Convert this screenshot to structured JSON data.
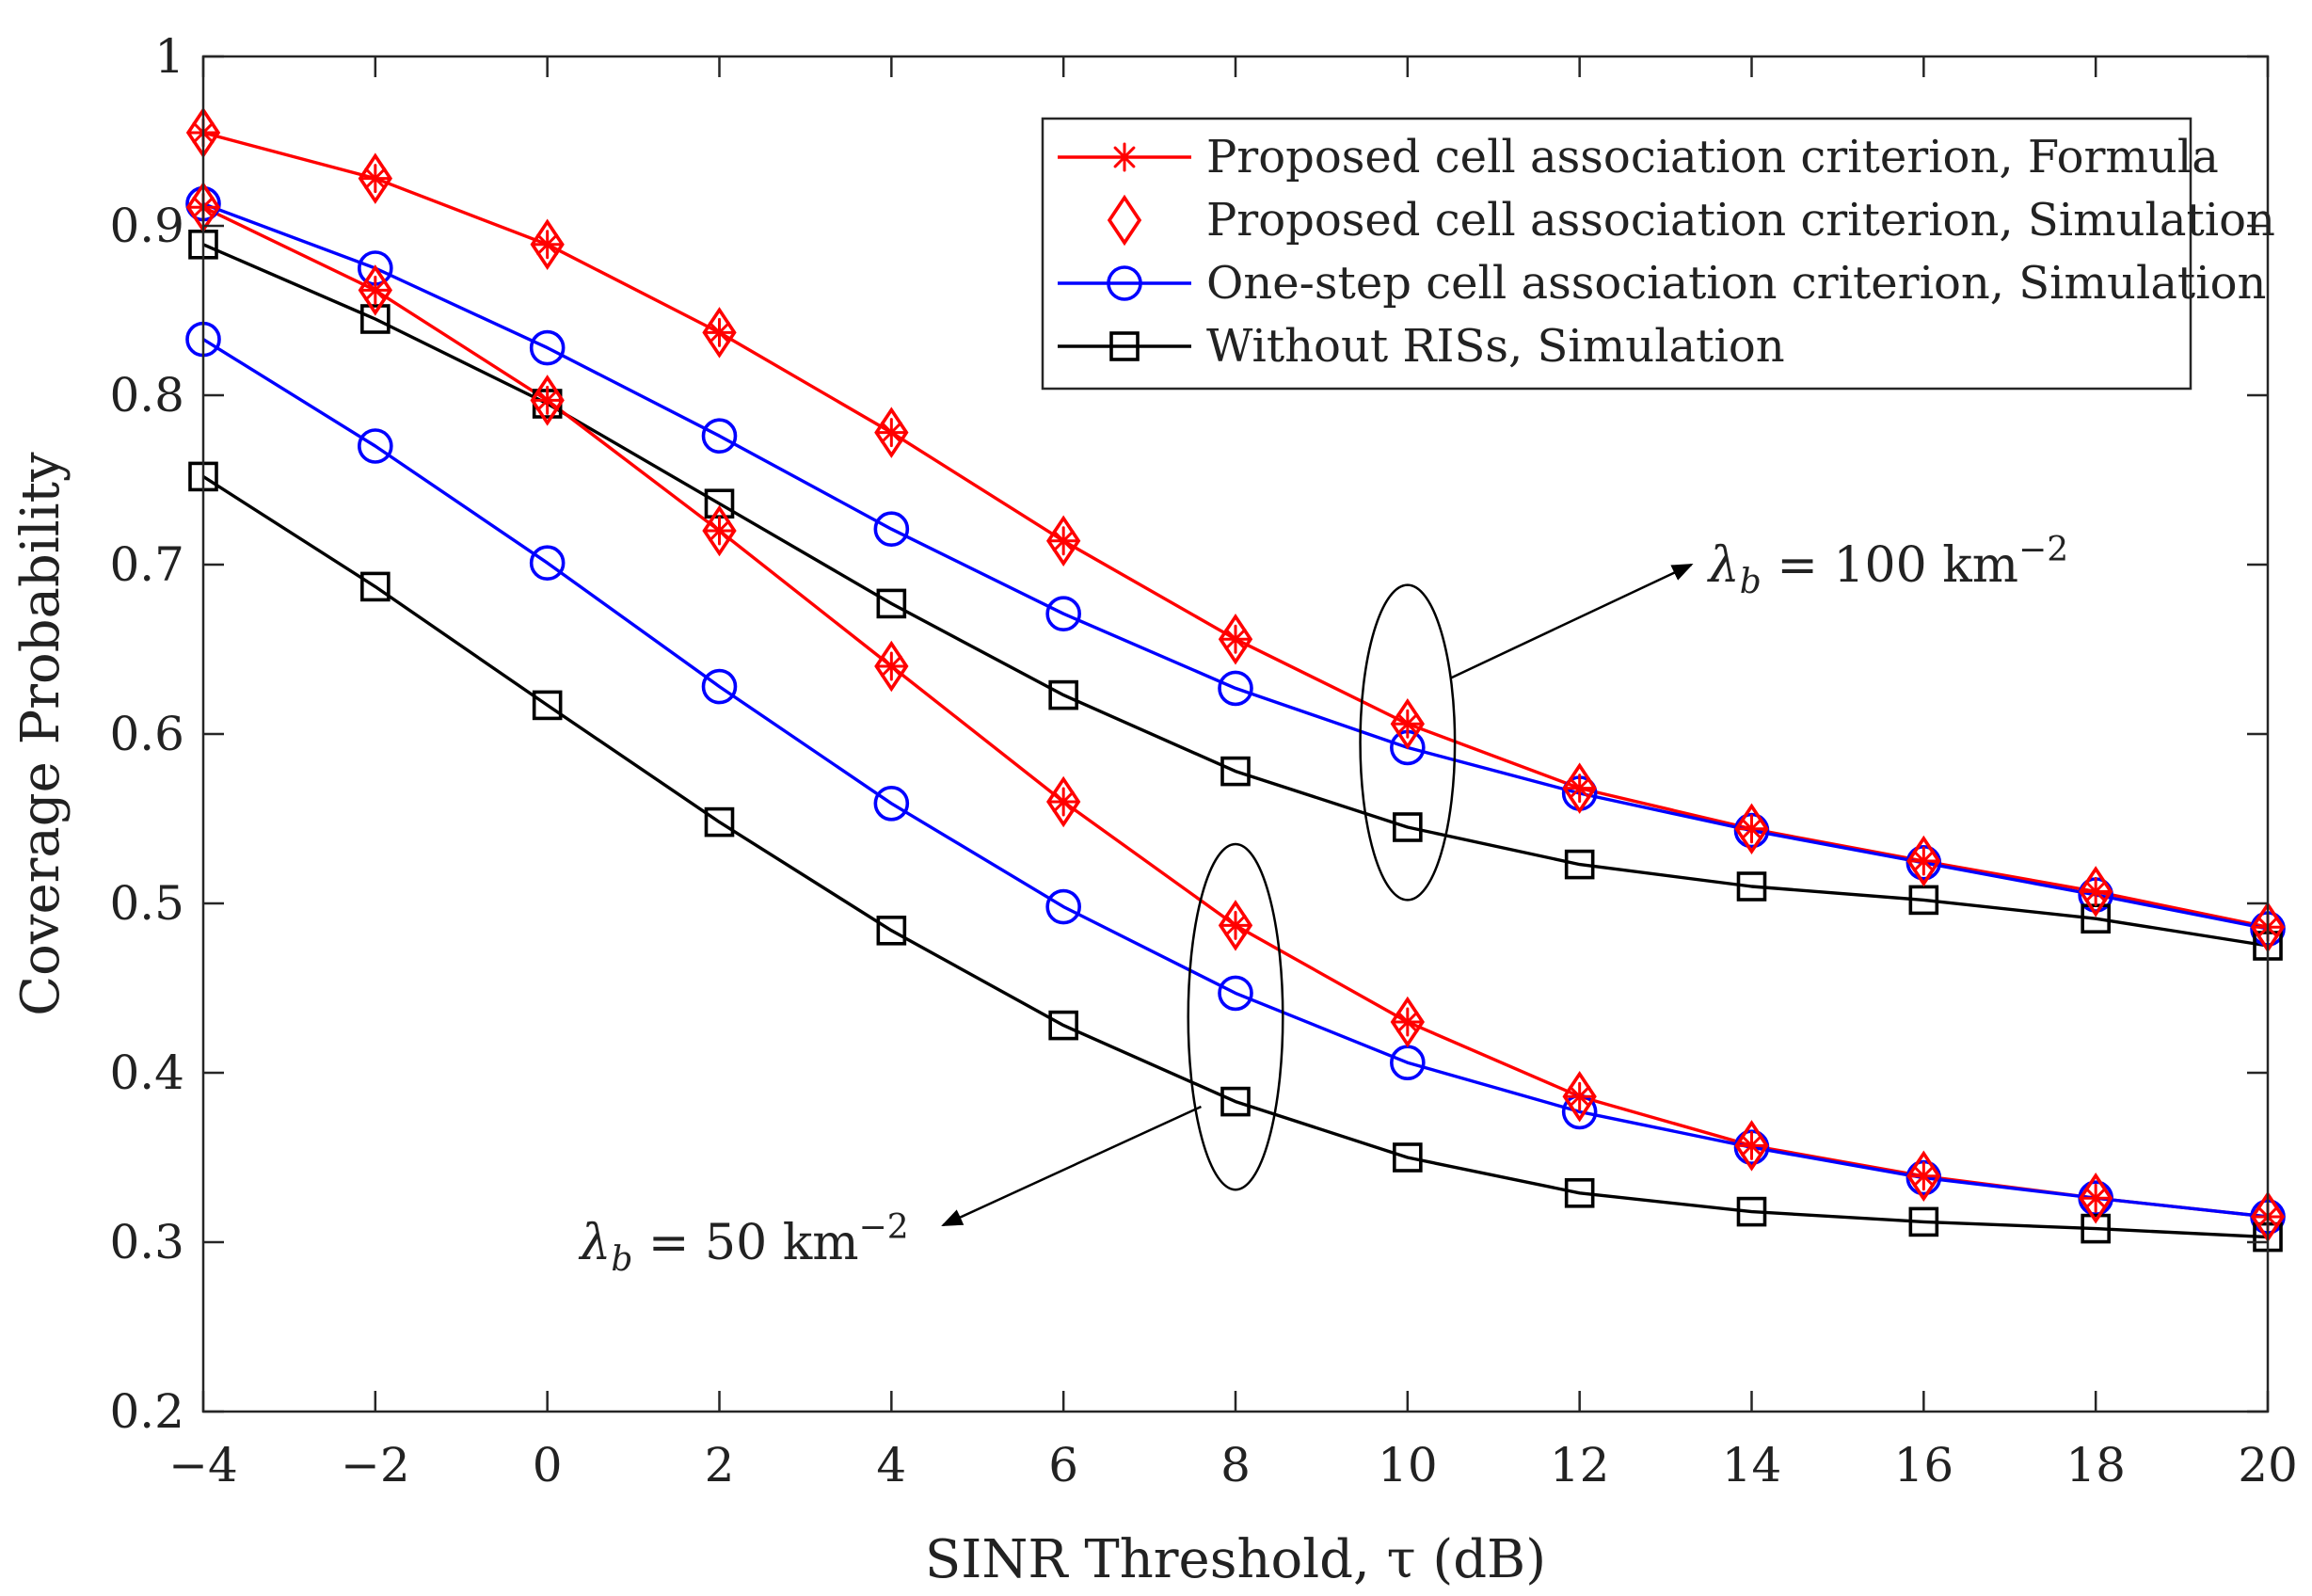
{
  "chart_data": {
    "type": "line",
    "title": "",
    "xlabel": "SINR Threshold, τ (dB)",
    "ylabel": "Coverage Probability",
    "xlim": [
      -4,
      20
    ],
    "ylim": [
      0.2,
      1.0
    ],
    "xticks": [
      -4,
      -2,
      0,
      2,
      4,
      6,
      8,
      10,
      12,
      14,
      16,
      18,
      20
    ],
    "yticks": [
      0.2,
      0.3,
      0.4,
      0.5,
      0.6,
      0.7,
      0.8,
      0.9,
      1.0
    ],
    "xtick_labels": [
      "−4",
      "−2",
      "0",
      "2",
      "4",
      "6",
      "8",
      "10",
      "12",
      "14",
      "16",
      "18",
      "20"
    ],
    "ytick_labels": [
      "0.2",
      "0.3",
      "0.4",
      "0.5",
      "0.6",
      "0.7",
      "0.8",
      "0.9",
      "1"
    ],
    "grid": false,
    "legend_position": "top-right",
    "x": [
      -4,
      -2,
      0,
      2,
      4,
      6,
      8,
      10,
      12,
      14,
      16,
      18,
      20
    ],
    "series": [
      {
        "name": "Proposed cell association criterion, Formula",
        "group": "λb = 100",
        "color": "#ff0000",
        "marker": "asterisk",
        "line": true,
        "values": [
          0.955,
          0.928,
          0.889,
          0.837,
          0.778,
          0.714,
          0.656,
          0.606,
          0.568,
          0.544,
          0.525,
          0.507,
          0.486
        ]
      },
      {
        "name": "Proposed cell association criterion, Simulation",
        "group": "λb = 100",
        "color": "#ff0000",
        "marker": "diamond",
        "line": false,
        "values": [
          0.955,
          0.928,
          0.889,
          0.837,
          0.778,
          0.714,
          0.656,
          0.606,
          0.568,
          0.544,
          0.525,
          0.507,
          0.486
        ]
      },
      {
        "name": "One-step cell association criterion, Simulation",
        "group": "λb = 100",
        "color": "#0000ff",
        "marker": "circle",
        "line": true,
        "values": [
          0.913,
          0.875,
          0.828,
          0.776,
          0.721,
          0.671,
          0.627,
          0.592,
          0.565,
          0.543,
          0.524,
          0.505,
          0.485
        ]
      },
      {
        "name": "Without RISs, Simulation",
        "group": "λb = 100",
        "color": "#000000",
        "marker": "square",
        "line": true,
        "values": [
          0.889,
          0.845,
          0.795,
          0.736,
          0.677,
          0.623,
          0.578,
          0.545,
          0.523,
          0.51,
          0.502,
          0.491,
          0.475
        ]
      },
      {
        "name": "Proposed cell association criterion, Formula",
        "group": "λb = 50",
        "color": "#ff0000",
        "marker": "asterisk",
        "line": true,
        "values": [
          0.911,
          0.862,
          0.797,
          0.72,
          0.64,
          0.56,
          0.487,
          0.43,
          0.386,
          0.357,
          0.339,
          0.326,
          0.315
        ]
      },
      {
        "name": "Proposed cell association criterion, Simulation",
        "group": "λb = 50",
        "color": "#ff0000",
        "marker": "diamond",
        "line": false,
        "values": [
          0.911,
          0.862,
          0.797,
          0.72,
          0.64,
          0.56,
          0.487,
          0.43,
          0.386,
          0.357,
          0.339,
          0.326,
          0.315
        ]
      },
      {
        "name": "One-step cell association criterion, Simulation",
        "group": "λb = 50",
        "color": "#0000ff",
        "marker": "circle",
        "line": true,
        "values": [
          0.833,
          0.77,
          0.701,
          0.628,
          0.559,
          0.498,
          0.447,
          0.406,
          0.377,
          0.356,
          0.338,
          0.326,
          0.315
        ]
      },
      {
        "name": "Without RISs, Simulation",
        "group": "λb = 50",
        "color": "#000000",
        "marker": "square",
        "line": true,
        "values": [
          0.752,
          0.687,
          0.617,
          0.548,
          0.484,
          0.428,
          0.383,
          0.35,
          0.329,
          0.318,
          0.312,
          0.308,
          0.303
        ]
      }
    ],
    "legend": [
      {
        "label": "Proposed cell association criterion, Formula",
        "color": "#ff0000",
        "marker": "asterisk",
        "line": true
      },
      {
        "label": "Proposed cell association criterion, Simulation",
        "color": "#ff0000",
        "marker": "diamond",
        "line": false
      },
      {
        "label": "One-step cell association criterion, Simulation",
        "color": "#0000ff",
        "marker": "circle",
        "line": true
      },
      {
        "label": "Without RISs, Simulation",
        "color": "#000000",
        "marker": "square",
        "line": true
      }
    ],
    "annotations": [
      {
        "text": "λb = 100 km−2",
        "symbol": "λ",
        "subscript": "b",
        "rest": " = 100 km",
        "superscript": "−2",
        "ellipse_center": [
          10,
          0.595
        ],
        "ellipse_halfwidth_x": 0.55,
        "ellipse_halfheight_y": 0.093,
        "arrow_from": [
          10.5,
          0.633
        ],
        "arrow_to": [
          13.3,
          0.7
        ],
        "text_at": [
          13.5,
          0.7
        ]
      },
      {
        "text": "λb = 50 km−2",
        "symbol": "λ",
        "subscript": "b",
        "rest": " = 50 km",
        "superscript": "−2",
        "ellipse_center": [
          8,
          0.433
        ],
        "ellipse_halfwidth_x": 0.55,
        "ellipse_halfheight_y": 0.102,
        "arrow_from": [
          7.6,
          0.38
        ],
        "arrow_to": [
          4.6,
          0.31
        ],
        "text_at": [
          4.2,
          0.3
        ]
      }
    ]
  }
}
